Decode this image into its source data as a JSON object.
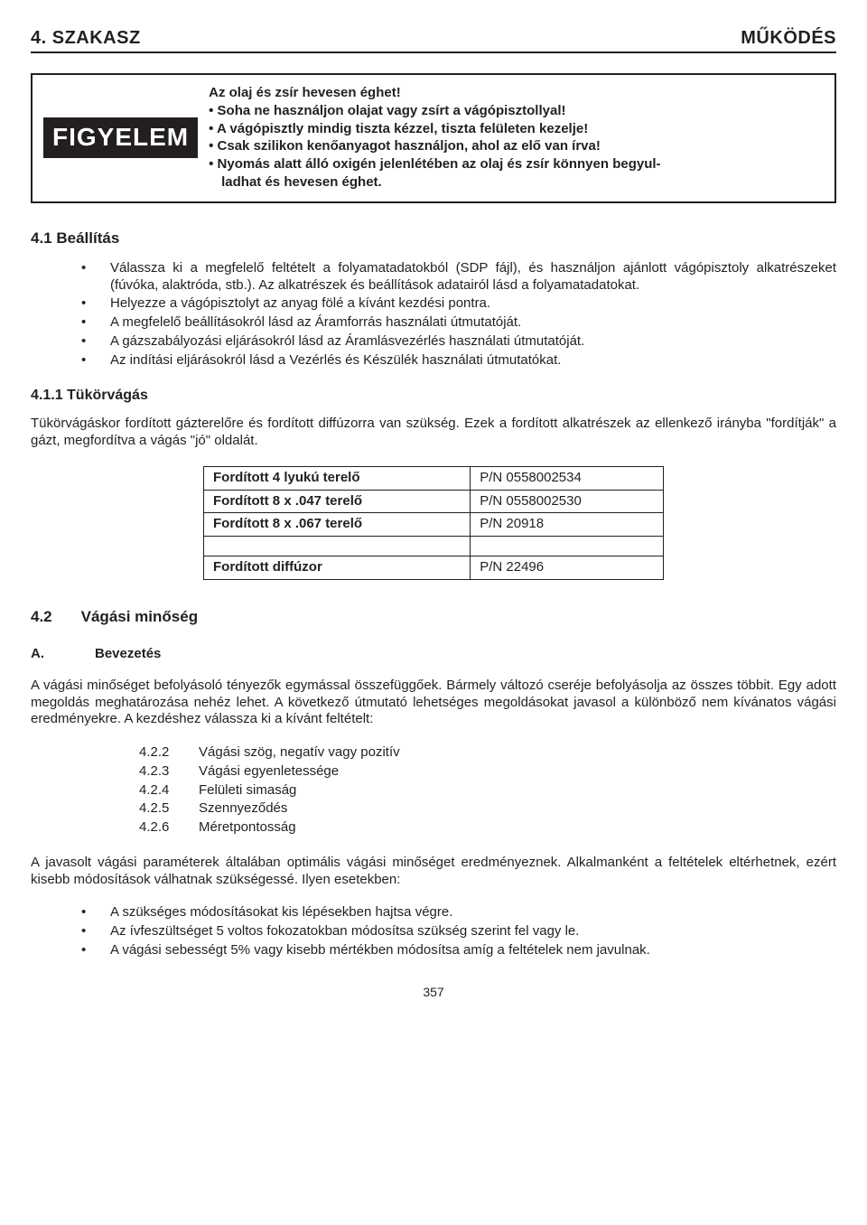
{
  "header": {
    "left": "4. SZAKASZ",
    "right": "MŰKÖDÉS"
  },
  "warning": {
    "label": "FIGYELEM",
    "lines": [
      "Az olaj és zsír hevesen éghet!",
      "• Soha ne használjon olajat vagy zsírt a vágópisztollyal!",
      "• A vágópisztly mindig tiszta kézzel, tiszta felületen kezelje!",
      "• Csak szilikon kenőanyagot használjon, ahol az elő van írva!",
      "• Nyomás alatt álló oxigén jelenlétében az olaj és zsír könnyen begyul-",
      "ladhat és hevesen éghet."
    ]
  },
  "s41": {
    "title": "4.1 Beállítás",
    "items": [
      "Válassza ki a megfelelő feltételt a folyamatadatokból (SDP fájl), és használjon ajánlott vágópisztoly alkatrészeket (fúvóka, alaktróda, stb.). Az alkatrészek és beállítások adatairól lásd a folyamatadatokat.",
      "Helyezze a vágópisztolyt az anyag fölé a kívánt kezdési pontra.",
      "A megfelelő beállításokról lásd az Áramforrás használati útmutatóját.",
      "A gázszabályozási eljárásokról lásd az Áramlásvezérlés használati útmutatóját.",
      "Az indítási eljárásokról lásd a Vezérlés és Készülék használati útmutatókat."
    ]
  },
  "s411": {
    "title": "4.1.1 Tükörvágás",
    "para": "Tükörvágáskor fordított gázterelőre és fordított diffúzorra van szükség.  Ezek a fordított alkatrészek az ellenkező irányba \"fordítják\" a gázt, megfordítva a vágás \"jó\" oldalát."
  },
  "parts": {
    "rows": [
      {
        "name": "Fordított 4 lyukú terelő",
        "pn": "P/N 0558002534"
      },
      {
        "name": "Fordított 8 x .047 terelő",
        "pn": "P/N 0558002530"
      },
      {
        "name": "Fordított 8 x .067 terelő",
        "pn": "P/N 20918"
      }
    ],
    "last": {
      "name": "Fordított diffúzor",
      "pn": "P/N 22496"
    }
  },
  "s42": {
    "num": "4.2",
    "title": "Vágási minőség"
  },
  "a": {
    "letter": "A.",
    "title": "Bevezetés"
  },
  "para42": "A vágási minőséget befolyásoló tényezők egymással összefüggőek. Bármely változó cseréje befolyásolja az össz­es többit. Egy adott megoldás meghatározása nehéz lehet. A következő útmutató lehetséges megoldásokat javasol a különböző nem kívánatos vágási eredményekre. A kezdéshez válassza ki a kívánt feltételt:",
  "numlist": [
    {
      "n": "4.2.2",
      "t": "Vágási szög, negatív vagy pozitív"
    },
    {
      "n": "4.2.3",
      "t": "Vágási egyenletessége"
    },
    {
      "n": "4.2.4",
      "t": "Felületi simaság"
    },
    {
      "n": "4.2.5",
      "t": "Szennyeződés"
    },
    {
      "n": "4.2.6",
      "t": "Méretpontosság"
    }
  ],
  "para42b": "A javasolt vágási paraméterek általában optimális vágási minőséget eredményeznek. Alkalmanként a feltételek eltérhetnek, ezért kisebb módosítások válhatnak szükségessé. Ilyen esetekben:",
  "bullets2": [
    "A szükséges módosításokat kis lépésekben hajtsa végre.",
    "Az ívfeszültséget 5 voltos fokozatokban módosítsa szükség szerint fel vagy le.",
    "A vágási sebességt 5% vagy kisebb mértékben módosítsa amíg a feltételek nem javulnak."
  ],
  "pagenum": "357"
}
